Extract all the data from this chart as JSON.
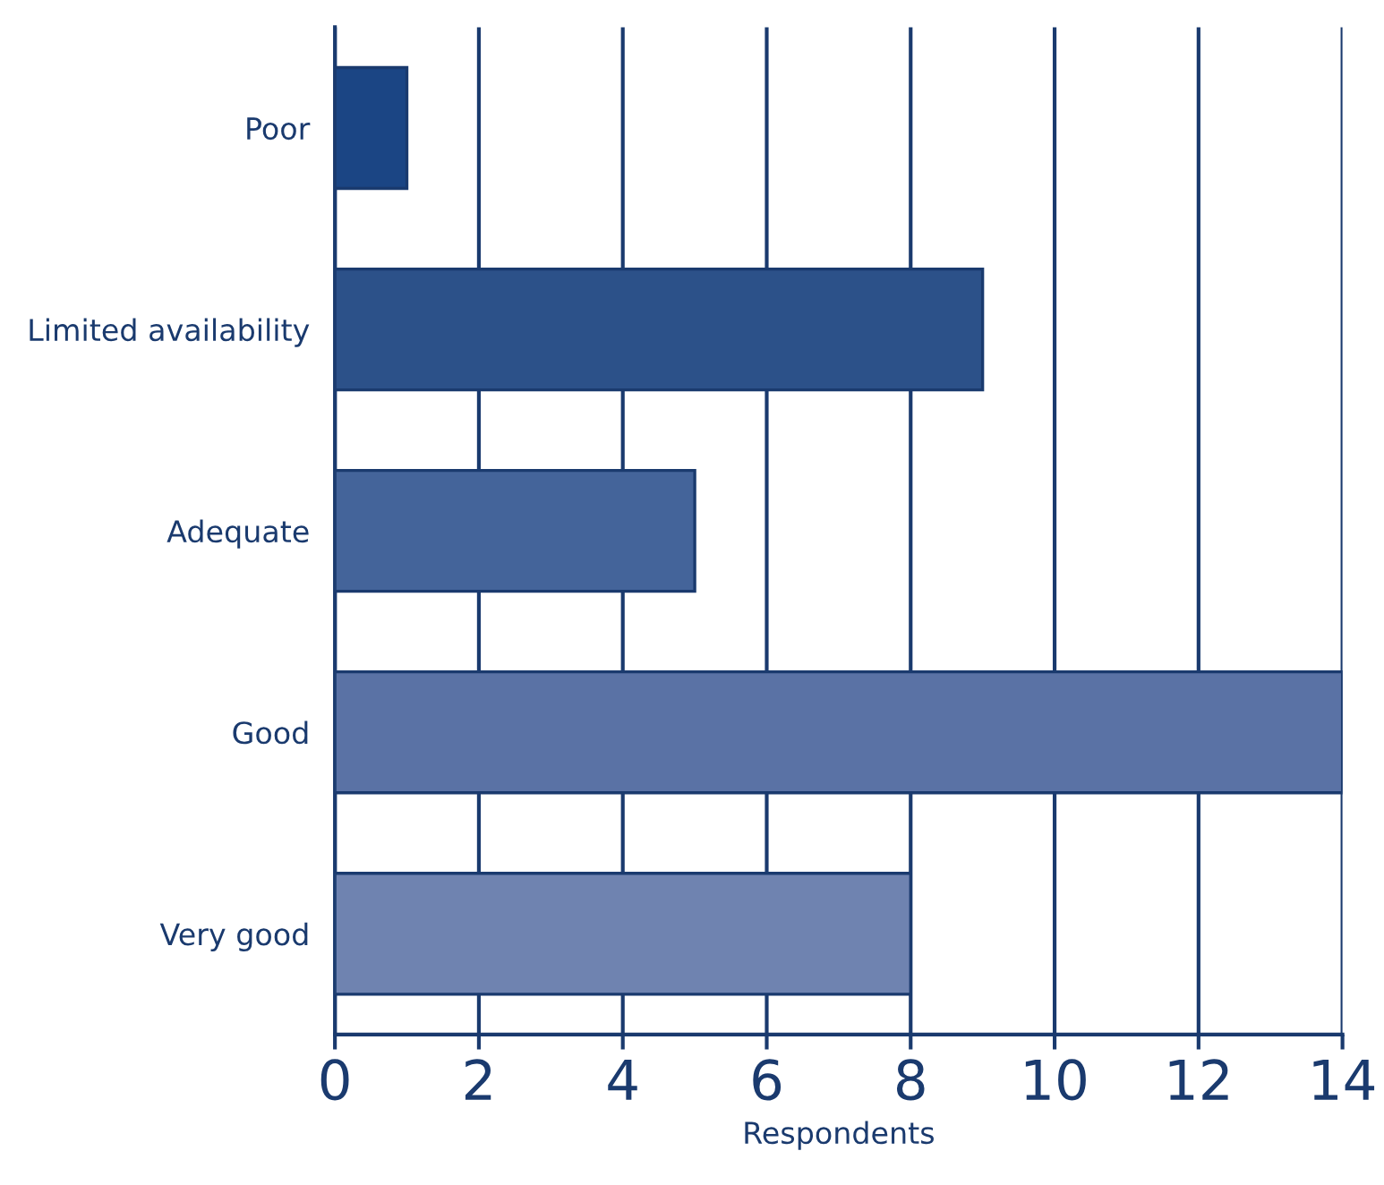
{
  "chart_data": {
    "type": "bar",
    "orientation": "horizontal",
    "xlabel": "Respondents",
    "categories": [
      "Poor",
      "Limited availability",
      "Adequate",
      "Good",
      "Very good"
    ],
    "values": [
      1,
      9,
      5,
      14,
      8
    ],
    "colors": [
      "#1b4584",
      "#2c5189",
      "#44649a",
      "#5a72a5",
      "#6f83b0"
    ],
    "xlim": [
      0,
      14
    ],
    "xticks": [
      0,
      2,
      4,
      6,
      8,
      10,
      12,
      14
    ],
    "grid": "x"
  }
}
